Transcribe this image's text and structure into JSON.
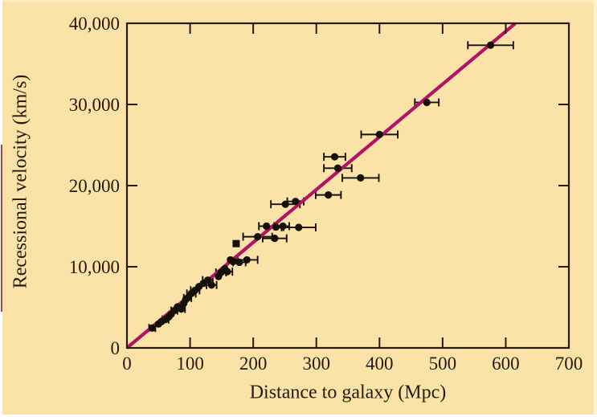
{
  "figure": {
    "background": "#fbe2a6",
    "frame_color": "#241a0e",
    "text_color": "#241a0e",
    "point_color": "#151008",
    "line_color": "#b11367"
  },
  "chart_data": {
    "type": "scatter",
    "title": "",
    "xlabel": "Distance to galaxy (Mpc)",
    "ylabel": "Recessional velocity (km/s)",
    "xlim": [
      0,
      700
    ],
    "ylim": [
      0,
      40000
    ],
    "x_ticks": [
      0,
      100,
      200,
      300,
      400,
      500,
      600,
      700
    ],
    "x_tick_labels": [
      "0",
      "100",
      "200",
      "300",
      "400",
      "500",
      "600",
      "700"
    ],
    "y_ticks": [
      0,
      10000,
      20000,
      30000,
      40000
    ],
    "y_tick_labels": [
      "0",
      "10,000",
      "20,000",
      "30,000",
      "40,000"
    ],
    "grid": false,
    "legend": null,
    "fit_line": {
      "slope_km_s_per_mpc": 65,
      "intercept_km_s": 0,
      "x_range_mpc": [
        0,
        615
      ],
      "color": "#b11367"
    },
    "points": [
      {
        "d": 40,
        "v": 2450,
        "xerr": 5
      },
      {
        "d": 50,
        "v": 2950,
        "xerr": 0
      },
      {
        "d": 55,
        "v": 3250,
        "xerr": 0
      },
      {
        "d": 61,
        "v": 3500,
        "xerr": 5
      },
      {
        "d": 66,
        "v": 3800,
        "xerr": 0
      },
      {
        "d": 70,
        "v": 4150,
        "xerr": 0
      },
      {
        "d": 75,
        "v": 4600,
        "xerr": 5
      },
      {
        "d": 80,
        "v": 5050,
        "xerr": 0
      },
      {
        "d": 86,
        "v": 4800,
        "xerr": 6
      },
      {
        "d": 90,
        "v": 5500,
        "xerr": 0
      },
      {
        "d": 93,
        "v": 5950,
        "xerr": 0
      },
      {
        "d": 96,
        "v": 6150,
        "xerr": 6
      },
      {
        "d": 102,
        "v": 6700,
        "xerr": 7
      },
      {
        "d": 108,
        "v": 7100,
        "xerr": 7
      },
      {
        "d": 114,
        "v": 7550,
        "xerr": 0
      },
      {
        "d": 121,
        "v": 7950,
        "xerr": 0
      },
      {
        "d": 128,
        "v": 8350,
        "xerr": 8
      },
      {
        "d": 134,
        "v": 7750,
        "xerr": 8
      },
      {
        "d": 145,
        "v": 8800,
        "xerr": 0
      },
      {
        "d": 149,
        "v": 9300,
        "xerr": 8
      },
      {
        "d": 155,
        "v": 9750,
        "xerr": 0
      },
      {
        "d": 159,
        "v": 9400,
        "xerr": 8
      },
      {
        "d": 164,
        "v": 10850,
        "xerr": 0
      },
      {
        "d": 168,
        "v": 10650,
        "xerr": 8
      },
      {
        "d": 173,
        "v": 12850,
        "xerr": 0,
        "marker": "square"
      },
      {
        "d": 178,
        "v": 10550,
        "xerr": 10
      },
      {
        "d": 190,
        "v": 10850,
        "xerr": 17
      },
      {
        "d": 207,
        "v": 13700,
        "xerr": 23
      },
      {
        "d": 221,
        "v": 15000,
        "xerr": 12
      },
      {
        "d": 234,
        "v": 13500,
        "xerr": 19
      },
      {
        "d": 236,
        "v": 14900,
        "xerr": 12
      },
      {
        "d": 247,
        "v": 15000,
        "xerr": 10
      },
      {
        "d": 251,
        "v": 17700,
        "xerr": 23
      },
      {
        "d": 267,
        "v": 18050,
        "xerr": 13
      },
      {
        "d": 272,
        "v": 14850,
        "xerr": 27
      },
      {
        "d": 319,
        "v": 18850,
        "xerr": 20
      },
      {
        "d": 329,
        "v": 23550,
        "xerr": 17
      },
      {
        "d": 334,
        "v": 22150,
        "xerr": 22
      },
      {
        "d": 370,
        "v": 20950,
        "xerr": 29
      },
      {
        "d": 400,
        "v": 26300,
        "xerr": 29
      },
      {
        "d": 475,
        "v": 30250,
        "xerr": 19
      },
      {
        "d": 576,
        "v": 37300,
        "xerr": 36
      }
    ]
  }
}
